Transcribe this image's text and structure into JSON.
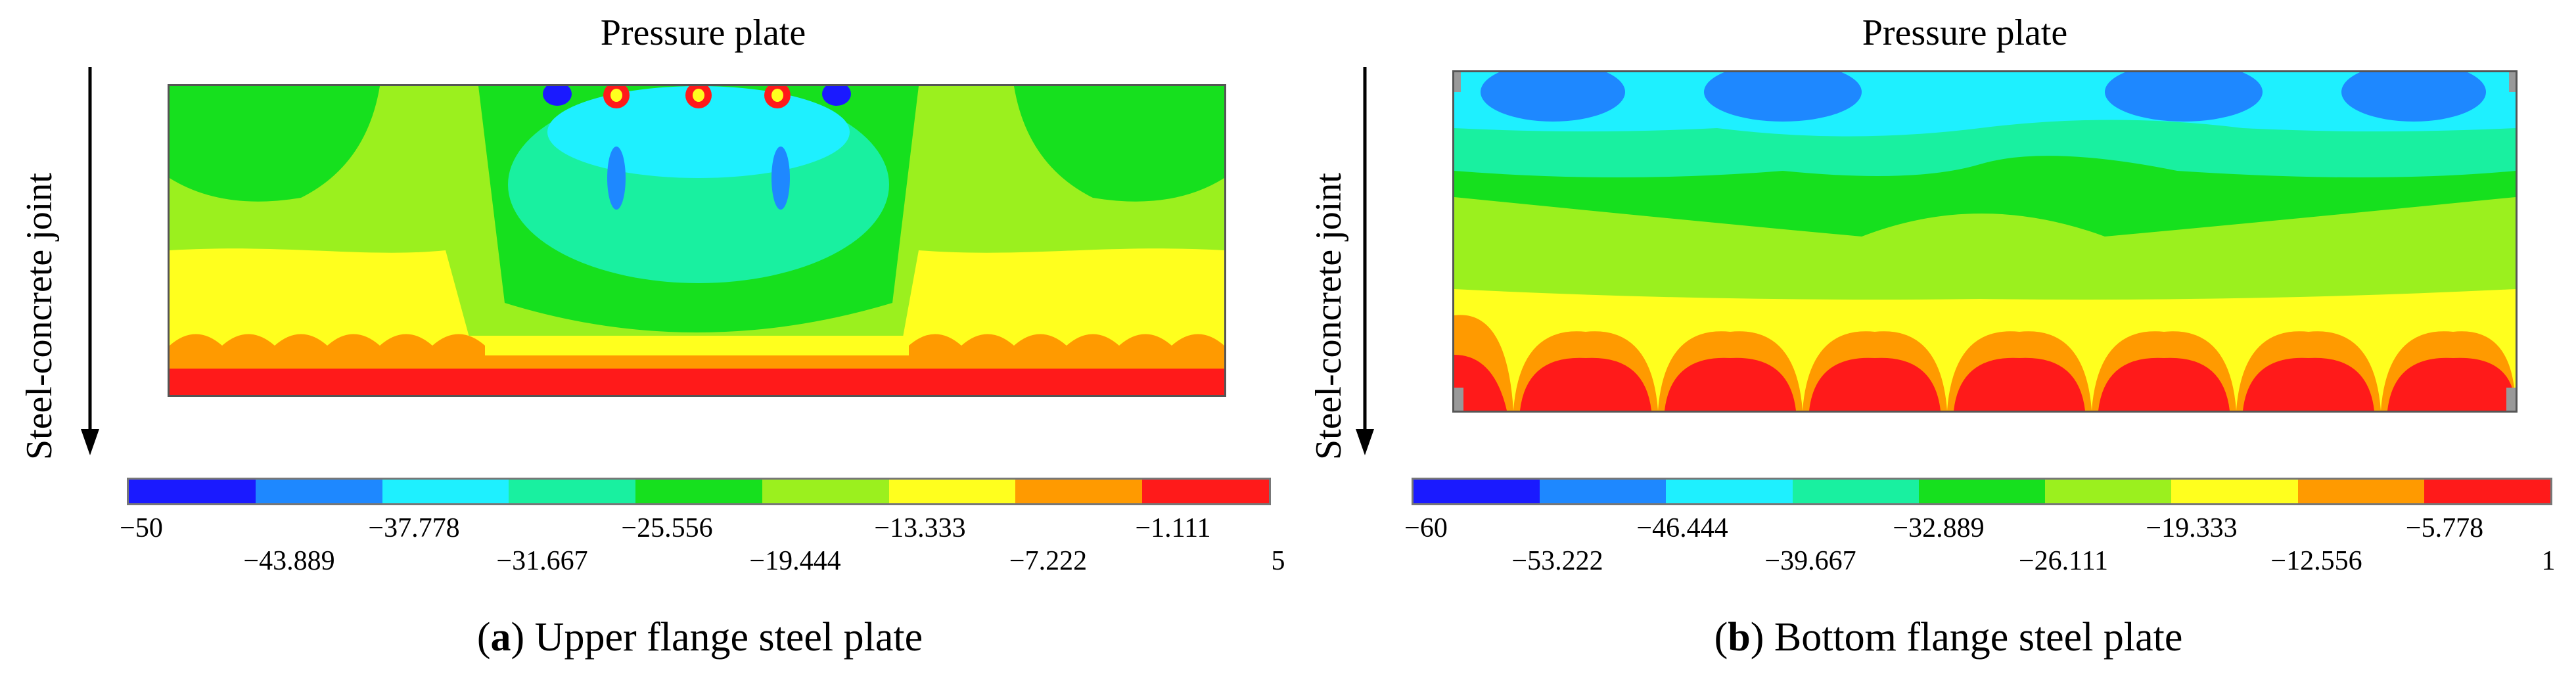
{
  "panels": [
    {
      "plot_title": "Pressure plate",
      "side_label": "Steel-concrete joint",
      "caption_letter": "a",
      "caption_text": "Upper flange steel plate",
      "colorbar": {
        "colors": [
          "#1a1aff",
          "#1e88ff",
          "#1ef0ff",
          "#19f0a0",
          "#16e01e",
          "#9bf01e",
          "#ffff1e",
          "#ff9a00",
          "#ff1a1a"
        ],
        "ticks": [
          "−50",
          "−43.889",
          "−37.778",
          "−31.667",
          "−25.556",
          "−19.444",
          "−13.333",
          "−7.222",
          "−1.111",
          "5"
        ]
      }
    },
    {
      "plot_title": "Pressure plate",
      "side_label": "Steel-concrete joint",
      "caption_letter": "b",
      "caption_text": "Bottom flange steel plate",
      "colorbar": {
        "colors": [
          "#1a1aff",
          "#1e88ff",
          "#1ef0ff",
          "#19f0a0",
          "#16e01e",
          "#9bf01e",
          "#ffff1e",
          "#ff9a00",
          "#ff1a1a"
        ],
        "ticks": [
          "−60",
          "−53.222",
          "−46.444",
          "−39.667",
          "−32.889",
          "−26.111",
          "−19.333",
          "−12.556",
          "−5.778",
          "1"
        ]
      }
    }
  ]
}
